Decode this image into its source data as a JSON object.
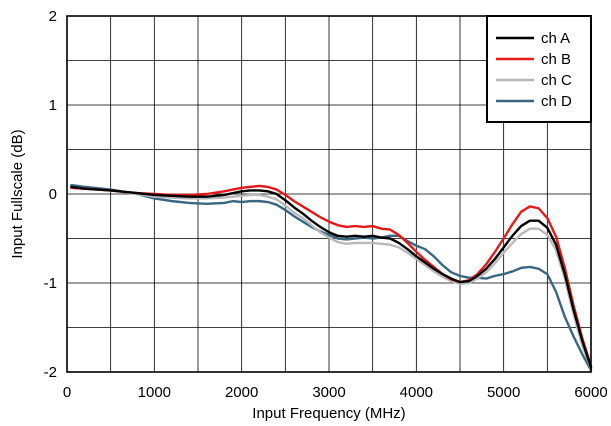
{
  "chart_data": {
    "type": "line",
    "xlabel": "Input Frequency (MHz)",
    "ylabel": "Input Fullscale (dB)",
    "xlim": [
      0,
      6000
    ],
    "ylim": [
      -2,
      2
    ],
    "xticks": [
      0,
      1000,
      2000,
      3000,
      4000,
      5000,
      6000
    ],
    "yticks": [
      -2,
      -1,
      0,
      1,
      2
    ],
    "grid": true,
    "legend_position": "top-right",
    "series": [
      {
        "name": "ch A",
        "color": "#000000",
        "x": [
          50,
          200,
          500,
          800,
          1000,
          1200,
          1400,
          1600,
          1800,
          2000,
          2100,
          2200,
          2300,
          2400,
          2500,
          2600,
          2700,
          2800,
          2900,
          3000,
          3100,
          3200,
          3300,
          3400,
          3500,
          3600,
          3700,
          3800,
          3900,
          4000,
          4100,
          4200,
          4300,
          4400,
          4500,
          4600,
          4700,
          4800,
          4900,
          5000,
          5100,
          5200,
          5300,
          5400,
          5500,
          5600,
          5700,
          5800,
          5900,
          6000
        ],
        "y": [
          0.08,
          0.06,
          0.04,
          0.01,
          -0.01,
          -0.02,
          -0.03,
          -0.03,
          -0.01,
          0.03,
          0.04,
          0.04,
          0.03,
          0.0,
          -0.07,
          -0.15,
          -0.22,
          -0.3,
          -0.37,
          -0.43,
          -0.47,
          -0.48,
          -0.47,
          -0.48,
          -0.47,
          -0.49,
          -0.5,
          -0.55,
          -0.62,
          -0.7,
          -0.77,
          -0.84,
          -0.9,
          -0.95,
          -0.99,
          -0.98,
          -0.92,
          -0.84,
          -0.73,
          -0.6,
          -0.47,
          -0.36,
          -0.3,
          -0.3,
          -0.38,
          -0.57,
          -0.9,
          -1.3,
          -1.65,
          -1.95
        ]
      },
      {
        "name": "ch B",
        "color": "#e31a1c",
        "x": [
          50,
          200,
          500,
          800,
          1000,
          1200,
          1400,
          1600,
          1800,
          2000,
          2100,
          2200,
          2300,
          2400,
          2500,
          2600,
          2700,
          2800,
          2900,
          3000,
          3100,
          3200,
          3300,
          3400,
          3500,
          3600,
          3700,
          3800,
          3900,
          4000,
          4100,
          4200,
          4300,
          4400,
          4500,
          4600,
          4700,
          4800,
          4900,
          5000,
          5100,
          5200,
          5300,
          5400,
          5500,
          5600,
          5700,
          5800,
          5900,
          6000
        ],
        "y": [
          0.07,
          0.06,
          0.04,
          0.01,
          0.0,
          -0.01,
          -0.01,
          0.0,
          0.03,
          0.07,
          0.08,
          0.09,
          0.08,
          0.05,
          -0.01,
          -0.08,
          -0.14,
          -0.2,
          -0.26,
          -0.31,
          -0.35,
          -0.37,
          -0.36,
          -0.37,
          -0.36,
          -0.39,
          -0.4,
          -0.46,
          -0.55,
          -0.65,
          -0.74,
          -0.82,
          -0.9,
          -0.96,
          -0.99,
          -0.97,
          -0.9,
          -0.79,
          -0.65,
          -0.5,
          -0.34,
          -0.2,
          -0.14,
          -0.16,
          -0.27,
          -0.48,
          -0.83,
          -1.25,
          -1.62,
          -1.93
        ]
      },
      {
        "name": "ch C",
        "color": "#b9b9b9",
        "x": [
          50,
          200,
          500,
          800,
          1000,
          1200,
          1400,
          1600,
          1800,
          2000,
          2100,
          2200,
          2300,
          2400,
          2500,
          2600,
          2700,
          2800,
          2900,
          3000,
          3100,
          3200,
          3300,
          3400,
          3500,
          3600,
          3700,
          3800,
          3900,
          4000,
          4100,
          4200,
          4300,
          4400,
          4500,
          4600,
          4700,
          4800,
          4900,
          5000,
          5100,
          5200,
          5300,
          5400,
          5500,
          5600,
          5700,
          5800,
          5900,
          6000
        ],
        "y": [
          0.07,
          0.06,
          0.04,
          0.0,
          -0.03,
          -0.04,
          -0.05,
          -0.05,
          -0.04,
          -0.02,
          -0.01,
          -0.01,
          -0.03,
          -0.06,
          -0.13,
          -0.21,
          -0.27,
          -0.35,
          -0.43,
          -0.49,
          -0.54,
          -0.56,
          -0.55,
          -0.55,
          -0.55,
          -0.56,
          -0.57,
          -0.6,
          -0.66,
          -0.73,
          -0.8,
          -0.87,
          -0.93,
          -0.98,
          -1.01,
          -1.0,
          -0.95,
          -0.88,
          -0.78,
          -0.66,
          -0.55,
          -0.45,
          -0.39,
          -0.39,
          -0.46,
          -0.63,
          -0.95,
          -1.35,
          -1.7,
          -1.96
        ]
      },
      {
        "name": "ch D",
        "color": "#3a6680",
        "x": [
          50,
          200,
          500,
          800,
          1000,
          1200,
          1400,
          1600,
          1800,
          1900,
          2000,
          2100,
          2200,
          2300,
          2400,
          2500,
          2600,
          2700,
          2800,
          2900,
          3000,
          3100,
          3200,
          3300,
          3400,
          3500,
          3600,
          3700,
          3800,
          3900,
          4000,
          4100,
          4200,
          4300,
          4400,
          4500,
          4600,
          4700,
          4800,
          4900,
          5000,
          5100,
          5200,
          5300,
          5400,
          5500,
          5600,
          5700,
          5800,
          5900,
          6000
        ],
        "y": [
          0.1,
          0.08,
          0.05,
          0.0,
          -0.05,
          -0.08,
          -0.1,
          -0.11,
          -0.1,
          -0.08,
          -0.09,
          -0.08,
          -0.08,
          -0.09,
          -0.12,
          -0.18,
          -0.25,
          -0.31,
          -0.37,
          -0.42,
          -0.46,
          -0.5,
          -0.51,
          -0.5,
          -0.49,
          -0.5,
          -0.49,
          -0.47,
          -0.47,
          -0.53,
          -0.58,
          -0.62,
          -0.7,
          -0.8,
          -0.88,
          -0.92,
          -0.94,
          -0.94,
          -0.95,
          -0.92,
          -0.9,
          -0.87,
          -0.83,
          -0.82,
          -0.84,
          -0.9,
          -1.1,
          -1.38,
          -1.6,
          -1.8,
          -1.98
        ]
      }
    ]
  }
}
